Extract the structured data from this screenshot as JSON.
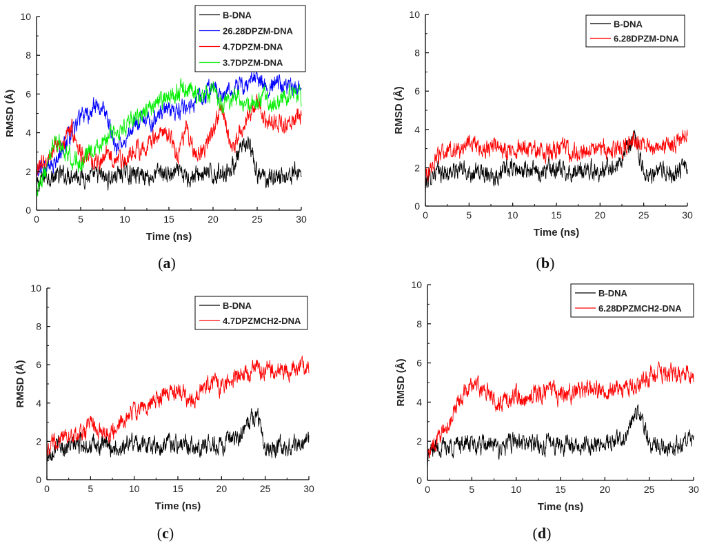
{
  "chart_data": [
    {
      "type": "line",
      "panel": "a",
      "caption": "(a)",
      "caption_parts": [
        "(",
        "a",
        ")"
      ],
      "xlabel": "Time (ns)",
      "ylabel": "RMSD (Å)",
      "xlim": [
        0,
        30
      ],
      "ylim": [
        0,
        10
      ],
      "xticks": [
        0,
        5,
        10,
        15,
        20,
        25,
        30
      ],
      "yticks": [
        0,
        2,
        4,
        6,
        8,
        10
      ],
      "legend_position": "top-right",
      "series": [
        {
          "name": "B-DNA",
          "color": "#000000",
          "x": [
            0,
            1,
            2,
            3,
            4,
            5,
            6,
            7,
            8,
            9,
            10,
            11,
            12,
            13,
            14,
            15,
            16,
            17,
            18,
            19,
            20,
            21,
            22,
            23,
            24,
            25,
            26,
            27,
            28,
            29,
            30
          ],
          "y": [
            1.2,
            1.8,
            1.7,
            1.8,
            1.9,
            1.8,
            1.7,
            1.8,
            1.6,
            1.8,
            2.0,
            1.8,
            1.9,
            1.7,
            2.0,
            1.8,
            1.9,
            1.7,
            1.8,
            1.9,
            1.8,
            2.0,
            2.1,
            2.9,
            3.5,
            1.8,
            1.7,
            1.8,
            1.7,
            1.9,
            2.0
          ]
        },
        {
          "name": "26.28DPZM-DNA",
          "color": "#0000ff",
          "x": [
            0,
            1,
            2,
            3,
            4,
            5,
            6,
            7,
            8,
            9,
            10,
            11,
            12,
            13,
            14,
            15,
            16,
            17,
            18,
            19,
            20,
            21,
            22,
            23,
            24,
            25,
            26,
            27,
            28,
            29,
            30
          ],
          "y": [
            2.0,
            2.2,
            2.5,
            3.3,
            3.8,
            4.8,
            5.0,
            5.5,
            4.8,
            3.0,
            3.8,
            4.5,
            4.6,
            4.5,
            4.9,
            5.0,
            5.1,
            5.4,
            5.6,
            5.8,
            6.5,
            6.0,
            6.2,
            6.3,
            6.6,
            6.8,
            6.2,
            6.6,
            6.5,
            6.3,
            6.4
          ]
        },
        {
          "name": "4.7DPZM-DNA",
          "color": "#ff0000",
          "x": [
            0,
            1,
            2,
            3,
            4,
            5,
            6,
            7,
            8,
            9,
            10,
            11,
            12,
            13,
            14,
            15,
            16,
            17,
            18,
            19,
            20,
            21,
            22,
            23,
            24,
            25,
            26,
            27,
            28,
            29,
            30
          ],
          "y": [
            2.1,
            2.6,
            3.2,
            3.6,
            4.2,
            2.8,
            2.8,
            2.4,
            2.9,
            2.7,
            2.6,
            3.3,
            3.1,
            3.6,
            3.9,
            4.0,
            2.8,
            4.4,
            2.8,
            3.2,
            4.0,
            5.5,
            3.1,
            4.0,
            4.8,
            5.6,
            4.4,
            4.6,
            4.2,
            4.8,
            5.0
          ]
        },
        {
          "name": "3.7DPZM-DNA",
          "color": "#00ee00",
          "x": [
            0,
            1,
            2,
            3,
            4,
            5,
            6,
            7,
            8,
            9,
            10,
            11,
            12,
            13,
            14,
            15,
            16,
            17,
            18,
            19,
            20,
            21,
            22,
            23,
            24,
            25,
            26,
            27,
            28,
            29,
            30
          ],
          "y": [
            1.0,
            2.0,
            3.6,
            3.2,
            2.7,
            2.4,
            2.9,
            3.0,
            3.8,
            4.0,
            4.2,
            4.6,
            4.9,
            5.3,
            5.6,
            5.8,
            6.1,
            6.3,
            6.0,
            5.8,
            6.1,
            5.5,
            5.7,
            5.9,
            5.3,
            5.6,
            5.9,
            5.4,
            5.8,
            6.0,
            5.9
          ]
        }
      ]
    },
    {
      "type": "line",
      "panel": "b",
      "caption": "(b)",
      "caption_parts": [
        "(",
        "b",
        ")"
      ],
      "xlabel": "Time (ns)",
      "ylabel": "RMSD (Å)",
      "xlim": [
        0,
        30
      ],
      "ylim": [
        0,
        10
      ],
      "xticks": [
        0,
        5,
        10,
        15,
        20,
        25,
        30
      ],
      "yticks": [
        0,
        2,
        4,
        6,
        8,
        10
      ],
      "legend_position": "top-right",
      "series": [
        {
          "name": "B-DNA",
          "color": "#000000",
          "x": [
            0,
            1,
            2,
            3,
            4,
            5,
            6,
            7,
            8,
            9,
            10,
            11,
            12,
            13,
            14,
            15,
            16,
            17,
            18,
            19,
            20,
            21,
            22,
            23,
            24,
            25,
            26,
            27,
            28,
            29,
            30
          ],
          "y": [
            1.2,
            1.8,
            1.7,
            1.8,
            1.9,
            1.8,
            1.7,
            1.8,
            1.6,
            1.8,
            2.0,
            1.8,
            1.9,
            1.7,
            2.0,
            1.8,
            1.9,
            1.7,
            1.8,
            1.9,
            1.8,
            2.0,
            2.1,
            2.9,
            3.5,
            1.8,
            1.7,
            1.8,
            1.7,
            1.9,
            2.0
          ]
        },
        {
          "name": "6.28DPZM-DNA",
          "color": "#ff0000",
          "x": [
            0,
            1,
            2,
            3,
            4,
            5,
            6,
            7,
            8,
            9,
            10,
            11,
            12,
            13,
            14,
            15,
            16,
            17,
            18,
            19,
            20,
            21,
            22,
            23,
            24,
            25,
            26,
            27,
            28,
            29,
            30
          ],
          "y": [
            1.5,
            2.4,
            2.8,
            2.9,
            3.0,
            3.3,
            3.2,
            3.0,
            3.1,
            2.9,
            3.0,
            3.1,
            3.0,
            2.9,
            2.8,
            3.0,
            3.0,
            2.8,
            2.7,
            2.9,
            3.0,
            3.1,
            3.0,
            3.2,
            3.4,
            3.1,
            3.1,
            3.0,
            3.2,
            3.4,
            3.6
          ]
        }
      ]
    },
    {
      "type": "line",
      "panel": "c",
      "caption": "(c)",
      "caption_parts": [
        "(",
        "c",
        ")"
      ],
      "xlabel": "Time (ns)",
      "ylabel": "RMSD (Å)",
      "xlim": [
        0,
        30
      ],
      "ylim": [
        0,
        10
      ],
      "xticks": [
        0,
        5,
        10,
        15,
        20,
        25,
        30
      ],
      "yticks": [
        0,
        2,
        4,
        6,
        8,
        10
      ],
      "legend_position": "top-right",
      "series": [
        {
          "name": "B-DNA",
          "color": "#000000",
          "x": [
            0,
            1,
            2,
            3,
            4,
            5,
            6,
            7,
            8,
            9,
            10,
            11,
            12,
            13,
            14,
            15,
            16,
            17,
            18,
            19,
            20,
            21,
            22,
            23,
            24,
            25,
            26,
            27,
            28,
            29,
            30
          ],
          "y": [
            1.2,
            1.8,
            1.7,
            1.8,
            1.9,
            1.8,
            1.7,
            1.8,
            1.6,
            1.8,
            2.0,
            1.8,
            1.9,
            1.7,
            2.0,
            1.8,
            1.9,
            1.7,
            1.8,
            1.9,
            1.8,
            2.0,
            2.1,
            2.9,
            3.5,
            1.8,
            1.7,
            1.8,
            1.7,
            1.9,
            2.0
          ]
        },
        {
          "name": "4.7DPZMCH2-DNA",
          "color": "#ff0000",
          "x": [
            0,
            1,
            2,
            3,
            4,
            5,
            6,
            7,
            8,
            9,
            10,
            11,
            12,
            13,
            14,
            15,
            16,
            17,
            18,
            19,
            20,
            21,
            22,
            23,
            24,
            25,
            26,
            27,
            28,
            29,
            30
          ],
          "y": [
            1.8,
            2.0,
            2.3,
            2.1,
            2.4,
            2.9,
            2.7,
            2.4,
            2.6,
            3.2,
            3.6,
            3.8,
            4.0,
            4.4,
            4.5,
            4.6,
            4.3,
            4.2,
            4.8,
            5.1,
            4.8,
            5.2,
            5.5,
            5.5,
            5.7,
            5.6,
            5.8,
            5.6,
            5.7,
            5.9,
            5.8
          ]
        }
      ]
    },
    {
      "type": "line",
      "panel": "d",
      "caption": "(d)",
      "caption_parts": [
        "(",
        "d",
        ")"
      ],
      "xlabel": "Time (ns)",
      "ylabel": "RMSD (Å)",
      "xlim": [
        0,
        30
      ],
      "ylim": [
        0,
        10
      ],
      "xticks": [
        0,
        5,
        10,
        15,
        20,
        25,
        30
      ],
      "yticks": [
        0,
        2,
        4,
        6,
        8,
        10
      ],
      "legend_position": "top-right",
      "series": [
        {
          "name": "B-DNA",
          "color": "#000000",
          "x": [
            0,
            1,
            2,
            3,
            4,
            5,
            6,
            7,
            8,
            9,
            10,
            11,
            12,
            13,
            14,
            15,
            16,
            17,
            18,
            19,
            20,
            21,
            22,
            23,
            24,
            25,
            26,
            27,
            28,
            29,
            30
          ],
          "y": [
            1.2,
            1.8,
            1.7,
            1.8,
            1.9,
            1.8,
            1.7,
            1.8,
            1.6,
            1.8,
            2.0,
            1.8,
            1.9,
            1.7,
            2.0,
            1.8,
            1.9,
            1.7,
            1.8,
            1.9,
            1.8,
            2.0,
            2.1,
            2.9,
            3.5,
            1.8,
            1.7,
            1.8,
            1.7,
            1.9,
            2.0
          ]
        },
        {
          "name": "6.28DPZMCH2-DNA",
          "color": "#ff0000",
          "x": [
            0,
            1,
            2,
            3,
            4,
            5,
            6,
            7,
            8,
            9,
            10,
            11,
            12,
            13,
            14,
            15,
            16,
            17,
            18,
            19,
            20,
            21,
            22,
            23,
            24,
            25,
            26,
            27,
            28,
            29,
            30
          ],
          "y": [
            1.5,
            2.0,
            2.6,
            3.5,
            4.4,
            4.9,
            4.6,
            4.4,
            3.8,
            4.1,
            4.3,
            4.2,
            4.4,
            4.5,
            4.6,
            4.3,
            4.4,
            4.6,
            4.8,
            4.6,
            4.5,
            4.7,
            4.6,
            4.8,
            5.0,
            5.3,
            5.4,
            5.6,
            5.5,
            5.4,
            5.3
          ]
        }
      ]
    }
  ]
}
